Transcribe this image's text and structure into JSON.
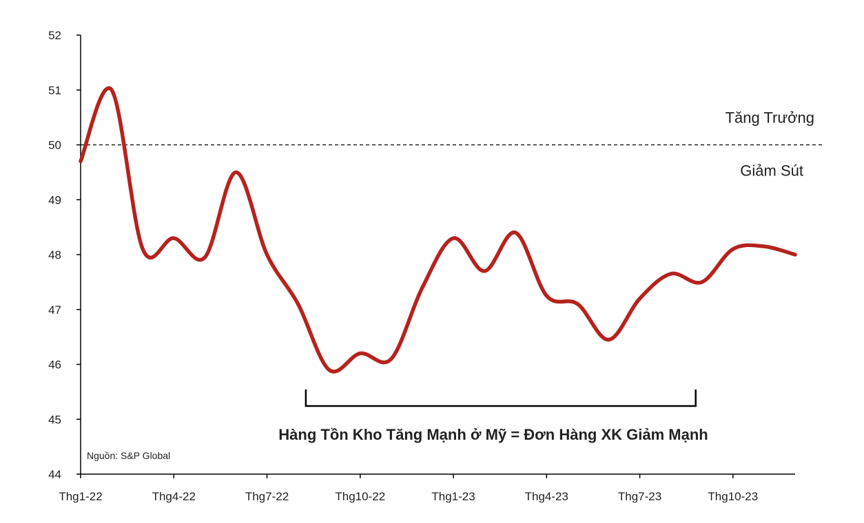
{
  "chart_data": {
    "type": "line",
    "title": "",
    "xlabel": "",
    "ylabel": "",
    "ylim": [
      44,
      52
    ],
    "y_ticks": [
      44,
      45,
      46,
      47,
      48,
      49,
      50,
      51,
      52
    ],
    "x_tick_labels": [
      "Thg1-22",
      "Thg4-22",
      "Thg7-22",
      "Thg10-22",
      "Thg1-23",
      "Thg4-23",
      "Thg7-23",
      "Thg10-23"
    ],
    "x_tick_positions": [
      0,
      3,
      6,
      9,
      12,
      15,
      18,
      21
    ],
    "x_range": [
      0,
      23
    ],
    "grid": false,
    "line_color": "#b5231e",
    "reference_line": {
      "y": 50,
      "style": "dashed"
    },
    "zone_labels": {
      "above": "Tăng Trưởng",
      "below": "Giảm Sút"
    },
    "series": [
      {
        "x": [
          0,
          1,
          2,
          3,
          4,
          5,
          6,
          7,
          8,
          9,
          10,
          11,
          12,
          13,
          14,
          15,
          16,
          17,
          18,
          19,
          20,
          21,
          22,
          23
        ],
        "values": [
          49.7,
          51.0,
          48.1,
          48.3,
          47.95,
          49.5,
          48.0,
          47.1,
          45.9,
          46.2,
          46.1,
          47.4,
          48.3,
          47.7,
          48.4,
          47.25,
          47.1,
          46.45,
          47.2,
          47.65,
          47.5,
          48.1,
          48.15,
          48.0
        ]
      }
    ],
    "annotation": {
      "text": "Hàng Tồn Kho Tăng Mạnh ở Mỹ = Đơn Hàng XK Giảm Mạnh",
      "x_start": 7.25,
      "x_end": 19.8
    },
    "source": "Nguồn: S&P Global"
  }
}
